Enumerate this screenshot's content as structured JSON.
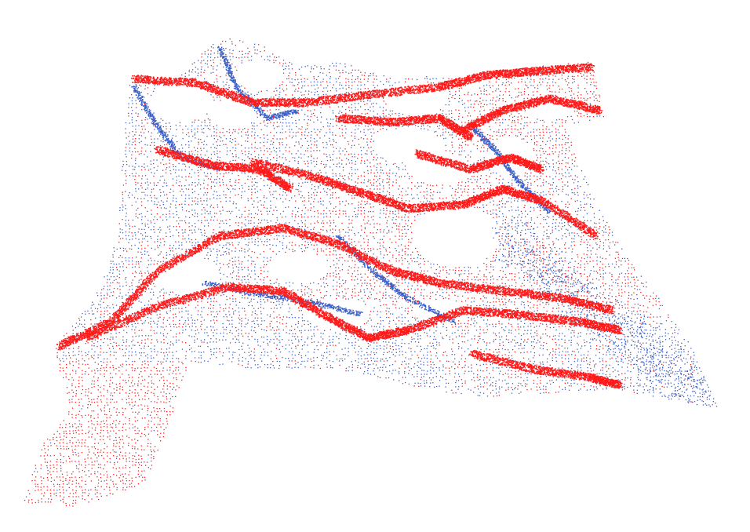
{
  "scene": {
    "background_color": "#ffffff",
    "clouds": [
      {
        "color": "#3a5fc8",
        "icon": "point-cloud-source"
      },
      {
        "color": "#ff1a1a",
        "icon": "point-cloud-target"
      }
    ]
  }
}
